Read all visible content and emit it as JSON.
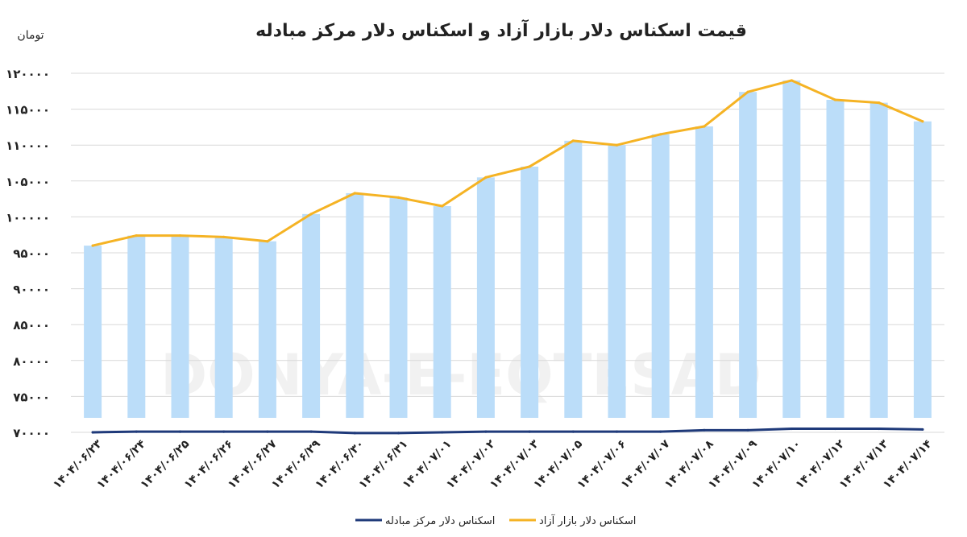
{
  "chart_data": {
    "type": "bar",
    "title": "قیمت اسکناس دلار بازار آزاد و اسکناس دلار مرکز مبادله",
    "ylabel": "تومان",
    "xlabel": "",
    "ylim": [
      70000,
      120000
    ],
    "yticks": [
      "۱۲۰۰۰۰",
      "۱۱۵۰۰۰",
      "۱۱۰۰۰۰",
      "۱۰۵۰۰۰",
      "۱۰۰۰۰۰",
      "۹۵۰۰۰",
      "۹۰۰۰۰",
      "۸۵۰۰۰",
      "۸۰۰۰۰",
      "۷۵۰۰۰",
      "۷۰۰۰۰"
    ],
    "ytick_values": [
      120000,
      115000,
      110000,
      105000,
      100000,
      95000,
      90000,
      85000,
      80000,
      75000,
      70000
    ],
    "categories": [
      "۱۴۰۴/۰۶/۲۳",
      "۱۴۰۴/۰۶/۲۴",
      "۱۴۰۴/۰۶/۲۵",
      "۱۴۰۴/۰۶/۲۶",
      "۱۴۰۴/۰۶/۲۷",
      "۱۴۰۴/۰۶/۲۹",
      "۱۴۰۴/۰۶/۳۰",
      "۱۴۰۴/۰۶/۳۱",
      "۱۴۰۴/۰۷/۰۱",
      "۱۴۰۴/۰۷/۰۲",
      "۱۴۰۴/۰۷/۰۳",
      "۱۴۰۴/۰۷/۰۵",
      "۱۴۰۴/۰۷/۰۶",
      "۱۴۰۴/۰۷/۰۷",
      "۱۴۰۴/۰۷/۰۸",
      "۱۴۰۴/۰۷/۰۹",
      "۱۴۰۴/۰۷/۱۰",
      "۱۴۰۴/۰۷/۱۲",
      "۱۴۰۴/۰۷/۱۳",
      "۱۴۰۴/۰۷/۱۴"
    ],
    "series": [
      {
        "name": "اسکناس دلار بازار آزاد",
        "kind": "line",
        "color": "#F5B324",
        "values": [
          96000,
          97400,
          97400,
          97200,
          96600,
          100400,
          103300,
          102700,
          101500,
          105500,
          107000,
          110600,
          110000,
          111500,
          112600,
          117400,
          119000,
          116300,
          115900,
          113300
        ]
      },
      {
        "name": "اسکناس دلار مرکز مبادله",
        "kind": "line",
        "color": "#1F3A7A",
        "values": [
          70000,
          70100,
          70100,
          70100,
          70100,
          70100,
          69900,
          69900,
          70000,
          70100,
          70100,
          70100,
          70100,
          70100,
          70300,
          70300,
          70500,
          70500,
          70500,
          70400
        ]
      },
      {
        "name": "",
        "kind": "bar",
        "color": "#BBDDF9",
        "values": [
          96000,
          97400,
          97400,
          97200,
          96600,
          100400,
          103300,
          102700,
          101500,
          105500,
          107000,
          110600,
          110000,
          111500,
          112600,
          117400,
          119000,
          116300,
          115900,
          113300
        ]
      }
    ],
    "legend_position": "bottom",
    "grid": true,
    "watermark": "DONYA-E-EQTESAD"
  }
}
